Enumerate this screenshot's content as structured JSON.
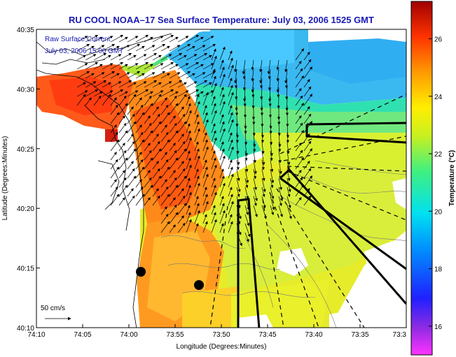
{
  "title": "RU COOL  NOAA–17  Sea Surface Temperature:  July 03, 2006 1525 GMT",
  "annotations": {
    "radar_line1": "Raw Surface Current",
    "radar_line2": "July 03, 2006 15:00 GMT"
  },
  "scale_label": "50 cm/s",
  "axes": {
    "xlabel": "Longitude (Degrees:Minutes)",
    "ylabel": "Latitude (Degrees:Minutes)",
    "xticks": [
      "74:10",
      "74:05",
      "74:00",
      "73:55",
      "73:50",
      "73:45",
      "73:40",
      "73:35",
      "73:3"
    ],
    "yticks": [
      "40:35",
      "40:30",
      "40:25",
      "40:20",
      "40:15",
      "40:10"
    ]
  },
  "colorbar": {
    "label": "Temperature (°C)",
    "ticks": [
      "26",
      "24",
      "22",
      "20",
      "18",
      "16"
    ],
    "min": 15.0,
    "max": 27.3
  },
  "colors": {
    "title": "#1a1ab4",
    "land": "#ffffff"
  }
}
